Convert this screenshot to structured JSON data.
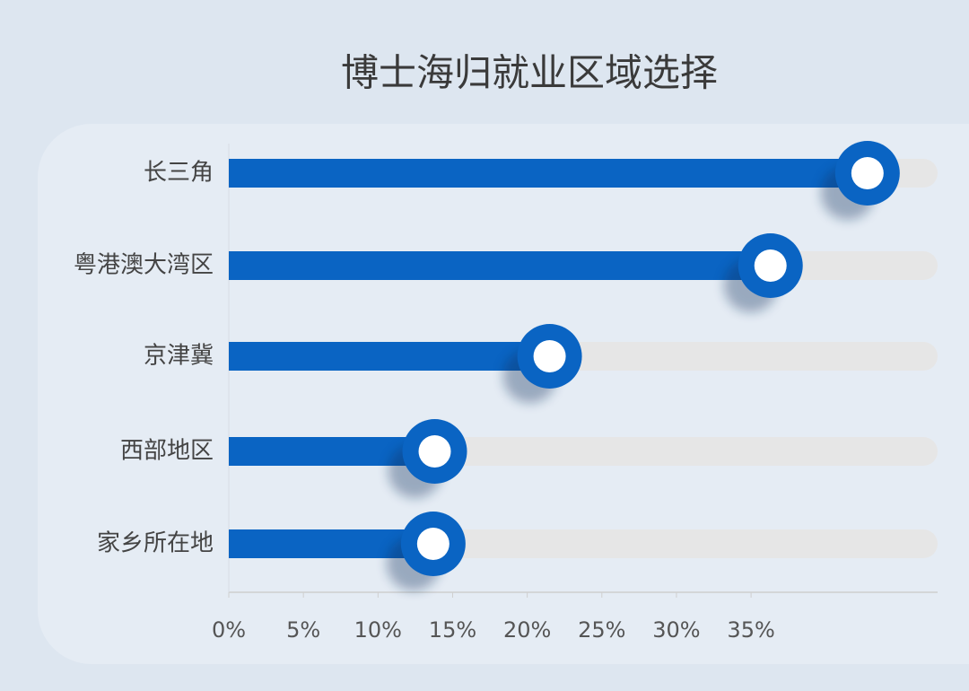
{
  "chart_data": {
    "type": "lollipop-bar",
    "title": "博士海归就业区域选择",
    "categories": [
      "长三角",
      "粤港澳大湾区",
      "京津冀",
      "西部地区",
      "家乡所在地"
    ],
    "values": [
      42.8,
      36.3,
      21.5,
      13.8,
      13.7
    ],
    "color": "#0a64c3",
    "xlim": [
      0,
      47.5
    ],
    "xticks": [
      {
        "value": 0,
        "label": "0%"
      },
      {
        "value": 5,
        "label": "5%"
      },
      {
        "value": 10,
        "label": "10%"
      },
      {
        "value": 15,
        "label": "15%"
      },
      {
        "value": 20,
        "label": "20%"
      },
      {
        "value": 25,
        "label": "25%"
      },
      {
        "value": 30,
        "label": "30%"
      },
      {
        "value": 35,
        "label": "35%"
      }
    ]
  }
}
